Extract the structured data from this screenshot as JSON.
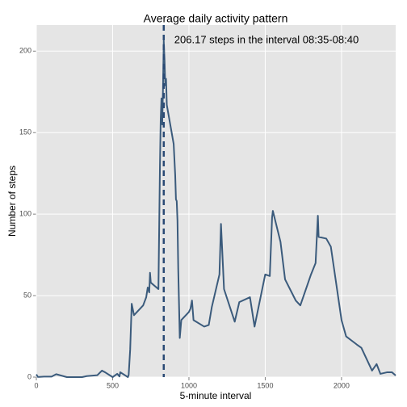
{
  "chart_data": {
    "type": "line",
    "title": "Average daily activity pattern",
    "xlabel": "5-minute interval",
    "ylabel": "Number of steps",
    "annotation": "206.17 steps in the interval 08:35-08:40",
    "vline": 835,
    "xlim": [
      0,
      2355
    ],
    "ylim": [
      0,
      216
    ],
    "xticks": [
      0,
      500,
      1000,
      1500,
      2000
    ],
    "yticks": [
      0,
      50,
      100,
      150,
      200
    ],
    "grid": true,
    "series": [
      {
        "color": "#3b5b7c",
        "x": [
          0,
          10,
          20,
          30,
          50,
          100,
          130,
          200,
          230,
          300,
          330,
          400,
          430,
          450,
          500,
          530,
          545,
          550,
          600,
          605,
          615,
          625,
          640,
          700,
          720,
          730,
          740,
          745,
          750,
          800,
          810,
          815,
          820,
          825,
          830,
          835,
          840,
          845,
          850,
          855,
          900,
          910,
          915,
          920,
          925,
          930,
          935,
          940,
          950,
          1000,
          1010,
          1020,
          1030,
          1100,
          1130,
          1150,
          1200,
          1210,
          1215,
          1230,
          1300,
          1330,
          1400,
          1430,
          1500,
          1530,
          1545,
          1550,
          1600,
          1630,
          1700,
          1730,
          1800,
          1830,
          1845,
          1850,
          1900,
          1930,
          2000,
          2030,
          2100,
          2130,
          2200,
          2230,
          2255,
          2300,
          2330,
          2355
        ],
        "values": [
          1.7,
          0.1,
          0.1,
          0.2,
          0.3,
          0.3,
          1.8,
          0,
          0,
          0,
          0.6,
          1.2,
          4,
          3,
          0,
          2,
          0.4,
          3,
          0,
          1.3,
          17,
          45,
          38,
          44,
          49,
          55,
          52,
          64,
          58,
          54,
          129,
          158,
          171,
          155,
          177,
          206.17,
          195,
          179,
          183,
          167,
          143,
          124,
          109,
          108,
          96,
          66,
          45,
          24,
          35,
          40,
          42,
          47,
          35,
          31,
          32,
          43,
          63,
          94,
          84,
          54,
          34,
          46,
          49,
          31,
          63,
          62,
          98,
          102,
          83,
          60,
          47,
          44,
          63,
          70,
          99,
          86,
          85,
          80,
          35,
          25,
          20,
          18,
          4,
          8,
          2,
          3,
          3,
          1
        ]
      }
    ]
  }
}
